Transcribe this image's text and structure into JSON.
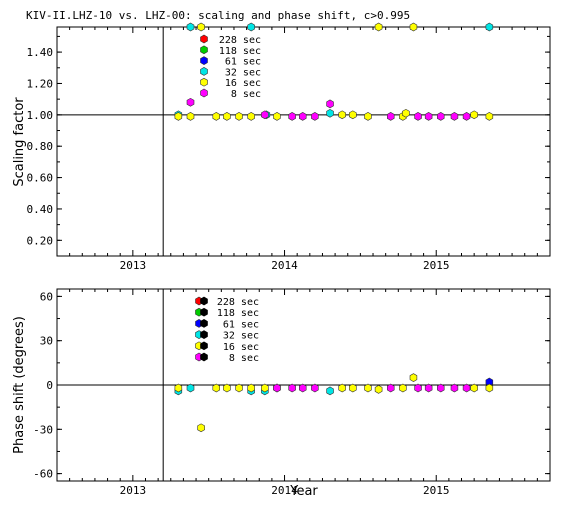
{
  "chart_data": [
    {
      "type": "scatter",
      "title": "KIV-II.LHZ-10 vs. LHZ-00: scaling and phase shift, c>0.995",
      "ylabel": "Scaling factor",
      "xlabel": "",
      "xlim": [
        2012.5,
        2015.75
      ],
      "ylim": [
        0.1,
        1.56
      ],
      "xticks": [
        2013,
        2014,
        2015
      ],
      "xtick_labels": [
        "2013",
        "2014",
        "2015"
      ],
      "yticks": [
        0.2,
        0.4,
        0.6,
        0.8,
        1.0,
        1.2,
        1.4
      ],
      "ytick_labels": [
        "0.20",
        "0.40",
        "0.60",
        "0.80",
        "1.00",
        "1.20",
        "1.40"
      ],
      "reference_line_y": 1.0,
      "vline_x": 2013.2,
      "legend_position": "top-center",
      "series": [
        {
          "name": "228 sec",
          "color": "#ff0000",
          "points": []
        },
        {
          "name": "118 sec",
          "color": "#00cc00",
          "points": []
        },
        {
          "name": "61 sec",
          "color": "#0000ff",
          "points": []
        },
        {
          "name": "32 sec",
          "color": "#00e5e5",
          "points": [
            [
              2013.3,
              1.0
            ],
            [
              2013.38,
              1.56
            ],
            [
              2013.88,
              1.0
            ],
            [
              2013.78,
              1.56
            ],
            [
              2014.3,
              1.01
            ],
            [
              2015.35,
              1.56
            ]
          ]
        },
        {
          "name": "16 sec",
          "color": "#ffff00",
          "points": [
            [
              2013.3,
              0.99
            ],
            [
              2013.38,
              0.99
            ],
            [
              2013.45,
              1.56
            ],
            [
              2013.55,
              0.99
            ],
            [
              2013.62,
              0.99
            ],
            [
              2013.7,
              0.99
            ],
            [
              2013.78,
              0.99
            ],
            [
              2013.95,
              0.99
            ],
            [
              2014.38,
              1.0
            ],
            [
              2014.45,
              1.0
            ],
            [
              2014.55,
              0.99
            ],
            [
              2014.62,
              1.56
            ],
            [
              2014.78,
              0.99
            ],
            [
              2014.8,
              1.01
            ],
            [
              2014.85,
              1.56
            ],
            [
              2015.25,
              1.0
            ],
            [
              2015.35,
              0.99
            ]
          ]
        },
        {
          "name": "8 sec",
          "color": "#ff00ff",
          "points": [
            [
              2013.38,
              1.08
            ],
            [
              2013.87,
              1.0
            ],
            [
              2014.05,
              0.99
            ],
            [
              2014.12,
              0.99
            ],
            [
              2014.2,
              0.99
            ],
            [
              2014.3,
              1.07
            ],
            [
              2014.7,
              0.99
            ],
            [
              2014.88,
              0.99
            ],
            [
              2014.95,
              0.99
            ],
            [
              2015.03,
              0.99
            ],
            [
              2015.12,
              0.99
            ],
            [
              2015.2,
              0.99
            ]
          ]
        }
      ]
    },
    {
      "type": "scatter",
      "title": "",
      "ylabel": "Phase shift (degrees)",
      "xlabel": "Year",
      "xlim": [
        2012.5,
        2015.75
      ],
      "ylim": [
        -65,
        65
      ],
      "xticks": [
        2013,
        2014,
        2015
      ],
      "xtick_labels": [
        "2013",
        "2014",
        "2015"
      ],
      "yticks": [
        -60,
        -30,
        0,
        30,
        60
      ],
      "ytick_labels": [
        "-60",
        "-30",
        "0",
        "30",
        "60"
      ],
      "reference_line_y": 0,
      "vline_x": 2013.2,
      "legend_position": "top-center",
      "series": [
        {
          "name": "228 sec",
          "color": "#ff0000",
          "points": []
        },
        {
          "name": "118 sec",
          "color": "#00cc00",
          "points": []
        },
        {
          "name": "61 sec",
          "color": "#0000ff",
          "points": [
            [
              2015.35,
              2
            ]
          ]
        },
        {
          "name": "32 sec",
          "color": "#00e5e5",
          "points": [
            [
              2013.3,
              -4
            ],
            [
              2013.38,
              -2
            ],
            [
              2013.78,
              -4
            ],
            [
              2013.87,
              -4
            ],
            [
              2014.3,
              -4
            ]
          ]
        },
        {
          "name": "16 sec",
          "color": "#ffff00",
          "points": [
            [
              2013.3,
              -2
            ],
            [
              2013.45,
              -29
            ],
            [
              2013.55,
              -2
            ],
            [
              2013.62,
              -2
            ],
            [
              2013.7,
              -2
            ],
            [
              2013.78,
              -2
            ],
            [
              2013.87,
              -2
            ],
            [
              2013.95,
              -2
            ],
            [
              2014.38,
              -2
            ],
            [
              2014.45,
              -2
            ],
            [
              2014.55,
              -2
            ],
            [
              2014.62,
              -3
            ],
            [
              2014.78,
              -2
            ],
            [
              2014.85,
              5
            ],
            [
              2015.25,
              -2
            ],
            [
              2015.35,
              -2
            ]
          ]
        },
        {
          "name": "8 sec",
          "color": "#ff00ff",
          "points": [
            [
              2013.95,
              -2
            ],
            [
              2014.05,
              -2
            ],
            [
              2014.12,
              -2
            ],
            [
              2014.2,
              -2
            ],
            [
              2014.7,
              -2
            ],
            [
              2014.88,
              -2
            ],
            [
              2014.95,
              -2
            ],
            [
              2015.03,
              -2
            ],
            [
              2015.12,
              -2
            ],
            [
              2015.2,
              -2
            ]
          ]
        }
      ]
    }
  ]
}
